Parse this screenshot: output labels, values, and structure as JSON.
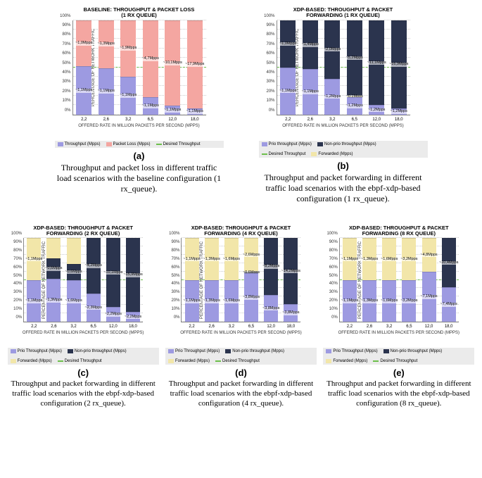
{
  "colors": {
    "lavender": "#9d9ae1",
    "pink": "#f4a6a1",
    "navy": "#2b344e",
    "cream": "#f2e6a9",
    "green": "#6dbf4b",
    "legend_bg": "#ebebeb"
  },
  "axes": {
    "y_title": "PERCENTAGE OF NETWORK TRAFFIC",
    "x_title": "OFFERED RATE IN MILLION PACKETS PER SECOND (MPPS)",
    "x_ticks": [
      "2,2",
      "2,6",
      "3,2",
      "6,5",
      "12,0",
      "18,0"
    ],
    "y_ticks": [
      0,
      10,
      20,
      30,
      40,
      50,
      60,
      70,
      80,
      90,
      100
    ]
  },
  "charts": {
    "a": {
      "title": "BASELINE: THROUGHPUT & PACKET LOSS\n(1 RX QUEUE)",
      "sub": "(a)",
      "caption": "Throughput and packet loss in different traffic load scenarios with the baseline configuration (1 rx_queue).",
      "legend": [
        {
          "c": "lavender",
          "t": "Throughput (Mpps)"
        },
        {
          "c": "pink",
          "t": "Packet Loss (Mpps)"
        },
        {
          "c": "green",
          "t": "Desired Throughput",
          "line": true
        }
      ],
      "greenline": 50,
      "bars": [
        {
          "segs": [
            {
              "c": "lavender",
              "h": 51,
              "l": "~1,1Mpps"
            },
            {
              "c": "pink",
              "h": 49,
              "l": "~1,0Mpps"
            }
          ]
        },
        {
          "segs": [
            {
              "c": "lavender",
              "h": 49,
              "l": "~1,1Mpps"
            },
            {
              "c": "pink",
              "h": 51,
              "l": "~1,3Mpps"
            }
          ]
        },
        {
          "segs": [
            {
              "c": "lavender",
              "h": 40,
              "l": "~1,1Mpps"
            },
            {
              "c": "pink",
              "h": 60,
              "l": "~1,9Mpps"
            }
          ]
        },
        {
          "segs": [
            {
              "c": "lavender",
              "h": 18,
              "l": "~1,1Mpps"
            },
            {
              "c": "pink",
              "h": 82,
              "l": "~4,7Mpps"
            }
          ]
        },
        {
          "segs": [
            {
              "c": "lavender",
              "h": 9,
              "l": "~1,1Mpps"
            },
            {
              "c": "pink",
              "h": 91,
              "l": "~10,1Mpps"
            }
          ]
        },
        {
          "segs": [
            {
              "c": "lavender",
              "h": 6,
              "l": "~1,1Mpps"
            },
            {
              "c": "pink",
              "h": 94,
              "l": "~17,9Mpps"
            }
          ]
        }
      ]
    },
    "b": {
      "title": "XDP-BASED: THROUGHPUT & PACKET\nFORWARDING (1 RX QUEUE)",
      "sub": "(b)",
      "caption": "Throughput and packet forwarding in different traffic load scenarios with the ebpf-xdp-based configuration (1 rx_queue).",
      "legend": [
        {
          "c": "lavender",
          "t": "Prio throughput (Mpps)"
        },
        {
          "c": "navy",
          "t": "Non-prio throughput (Mpps)"
        },
        {
          "c": "green",
          "t": "Desired Throughput",
          "line": true
        },
        {
          "c": "cream",
          "t": "Forwarded (Mpps)"
        }
      ],
      "greenline": 50,
      "bars": [
        {
          "segs": [
            {
              "c": "lavender",
              "h": 50,
              "l": "~1,1Mpps"
            },
            {
              "c": "navy",
              "h": 50,
              "l": "~1,0Mpps"
            }
          ]
        },
        {
          "segs": [
            {
              "c": "lavender",
              "h": 48,
              "l": "~1,1Mpps"
            },
            {
              "c": "navy",
              "h": 52,
              "l": "~1,4Mpps"
            }
          ]
        },
        {
          "segs": [
            {
              "c": "lavender",
              "h": 38,
              "l": "~1,2Mpps"
            },
            {
              "c": "navy",
              "h": 62,
              "l": "~2,0Mpps"
            }
          ]
        },
        {
          "segs": [
            {
              "c": "lavender",
              "h": 18,
              "l": "~1,2Mpps"
            },
            {
              "c": "cream",
              "h": 2,
              "l": "~0,1Mpps"
            },
            {
              "c": "navy",
              "h": 80,
              "l": "~5,2Mpps"
            }
          ]
        },
        {
          "segs": [
            {
              "c": "lavender",
              "h": 10,
              "l": "~1,2Mpps"
            },
            {
              "c": "navy",
              "h": 90,
              "l": "~11,1Mpps"
            }
          ]
        },
        {
          "segs": [
            {
              "c": "lavender",
              "h": 6,
              "l": "~1,2Mpps"
            },
            {
              "c": "navy",
              "h": 94,
              "l": "~16,9Mpps"
            }
          ]
        }
      ]
    },
    "c": {
      "title": "XDP-BASED: THROUGHPUT & PACKET\nFORWARDING (2 RX QUEUE)",
      "sub": "(c)",
      "caption": "Throughput and packet forwarding in different traffic load scenarios with the ebpf-xdp-based configuration (2 rx_queue).",
      "legend": [
        {
          "c": "lavender",
          "t": "Prio Throughput (Mpps)"
        },
        {
          "c": "navy",
          "t": "Non-prio throughput (Mpps)"
        },
        {
          "c": "cream",
          "t": "Forwarded (Mpps)"
        },
        {
          "c": "green",
          "t": "Desired Throughput",
          "line": true
        }
      ],
      "greenline": 50,
      "bars": [
        {
          "segs": [
            {
              "c": "lavender",
              "h": 50,
              "l": "~1,1Mpps"
            },
            {
              "c": "cream",
              "h": 50,
              "l": "~1,1Mpps"
            }
          ]
        },
        {
          "segs": [
            {
              "c": "lavender",
              "h": 51,
              "l": "~1,3Mpps"
            },
            {
              "c": "navy",
              "h": 25,
              "l": "~0,6Mpps"
            },
            {
              "c": "cream",
              "h": 24
            }
          ]
        },
        {
          "segs": [
            {
              "c": "lavender",
              "h": 50,
              "l": "~1,6Mpps"
            },
            {
              "c": "navy",
              "h": 19,
              "l": "~0,6Mpps"
            },
            {
              "c": "cream",
              "h": 31
            }
          ]
        },
        {
          "segs": [
            {
              "c": "lavender",
              "h": 34,
              "l": "~2,3Mpps"
            },
            {
              "c": "navy",
              "h": 66,
              "l": "~4,2Mpps"
            }
          ]
        },
        {
          "segs": [
            {
              "c": "lavender",
              "h": 18,
              "l": "~2,2Mpps"
            },
            {
              "c": "navy",
              "h": 82,
              "l": "~10,1Mpps"
            }
          ]
        },
        {
          "segs": [
            {
              "c": "lavender",
              "h": 12,
              "l": "~2,2Mpps"
            },
            {
              "c": "navy",
              "h": 88,
              "l": "~15,9Mpps"
            }
          ]
        }
      ]
    },
    "d": {
      "title": "XDP-BASED: THROUGHPUT & PACKET\nFORWARDING (4 RX QUEUE)",
      "sub": "(d)",
      "caption": "Throughput and packet forwarding in different traffic load scenarios with the ebpf-xdp-based configuration (4 rx_queue).",
      "legend": [
        {
          "c": "lavender",
          "t": "Prio Throughput (Mpps)"
        },
        {
          "c": "navy",
          "t": "Non-prio throughput (Mpps)"
        },
        {
          "c": "cream",
          "t": "Forwarded (Mpps)"
        },
        {
          "c": "green",
          "t": "Desired Throughput",
          "line": true
        }
      ],
      "greenline": 50,
      "bars": [
        {
          "segs": [
            {
              "c": "lavender",
              "h": 50,
              "l": "~1,1Mpps"
            },
            {
              "c": "cream",
              "h": 50,
              "l": "~1,1Mpps"
            }
          ]
        },
        {
          "segs": [
            {
              "c": "lavender",
              "h": 50,
              "l": "~1,3Mpps"
            },
            {
              "c": "cream",
              "h": 50,
              "l": "~1,3Mpps"
            }
          ]
        },
        {
          "segs": [
            {
              "c": "lavender",
              "h": 50,
              "l": "~1,6Mpps"
            },
            {
              "c": "cream",
              "h": 50,
              "l": "~1,6Mpps"
            }
          ]
        },
        {
          "segs": [
            {
              "c": "lavender",
              "h": 58,
              "l": "~3,8Mpps"
            },
            {
              "c": "navy",
              "h": 2,
              "l": "~0,6Mpps"
            },
            {
              "c": "cream",
              "h": 40,
              "l": "~2,6Mpps"
            }
          ]
        },
        {
          "segs": [
            {
              "c": "lavender",
              "h": 32,
              "l": "~3,8Mpps"
            },
            {
              "c": "navy",
              "h": 68,
              "l": "~8,2Mpps"
            }
          ]
        },
        {
          "segs": [
            {
              "c": "lavender",
              "h": 21,
              "l": "~3,8Mpps"
            },
            {
              "c": "navy",
              "h": 79,
              "l": "~14,2Mpps"
            }
          ]
        }
      ]
    },
    "e": {
      "title": "XDP-BASED: THROUGHPUT & PACKET\nFORWARDING (8 RX QUEUE)",
      "sub": "(e)",
      "caption": "Throughput and packet forwarding in different traffic load scenarios with the ebpf-xdp-based configuration (8 rx_queue).",
      "legend": [
        {
          "c": "lavender",
          "t": "Prio Throughput (Mpps)"
        },
        {
          "c": "navy",
          "t": "Non-prio throughput (Mpps)"
        },
        {
          "c": "cream",
          "t": "Forwarded (Mpps)"
        },
        {
          "c": "green",
          "t": "Desired Throughput",
          "line": true
        }
      ],
      "greenline": 50,
      "bars": [
        {
          "segs": [
            {
              "c": "lavender",
              "h": 50,
              "l": "~1,1Mpps"
            },
            {
              "c": "cream",
              "h": 50,
              "l": "~1,1Mpps"
            }
          ]
        },
        {
          "segs": [
            {
              "c": "lavender",
              "h": 50,
              "l": "~1,3Mpps"
            },
            {
              "c": "cream",
              "h": 50,
              "l": "~1,3Mpps"
            }
          ]
        },
        {
          "segs": [
            {
              "c": "lavender",
              "h": 50,
              "l": "~1,6Mpps"
            },
            {
              "c": "cream",
              "h": 50,
              "l": "~1,6Mpps"
            }
          ]
        },
        {
          "segs": [
            {
              "c": "lavender",
              "h": 50,
              "l": "~3,2Mpps"
            },
            {
              "c": "cream",
              "h": 50,
              "l": "~3,2Mpps"
            }
          ]
        },
        {
          "segs": [
            {
              "c": "lavender",
              "h": 60,
              "l": "~7,1Mpps"
            },
            {
              "c": "cream",
              "h": 40,
              "l": "~4,8Mpps"
            }
          ]
        },
        {
          "segs": [
            {
              "c": "lavender",
              "h": 41,
              "l": "~7,4Mpps"
            },
            {
              "c": "navy",
              "h": 59,
              "l": "~10,4Mpps"
            }
          ]
        }
      ]
    }
  }
}
